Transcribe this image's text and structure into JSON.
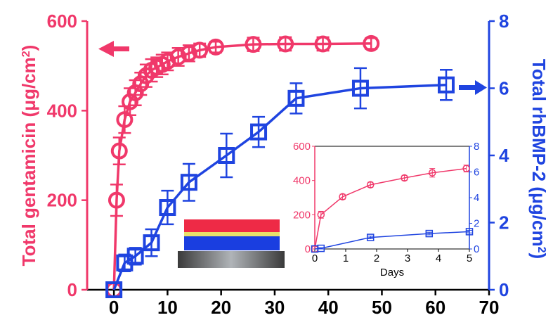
{
  "colors": {
    "gentamicin": "#f0386a",
    "rhbmp2": "#1f44e0",
    "axis": "#000000"
  },
  "chart_data": [
    {
      "type": "line",
      "xlim": [
        -5,
        70
      ],
      "x_ticks": [
        0,
        10,
        20,
        30,
        40,
        50,
        60,
        70
      ],
      "y_left": {
        "label_prefix": "Total gentamicin (",
        "label_unit": "μg/cm",
        "label_exp": "2",
        "label_suffix": ")",
        "lim": [
          0,
          600
        ],
        "ticks": [
          0,
          200,
          400,
          600
        ]
      },
      "y_right": {
        "label_prefix": "Total rhBMP-2 (",
        "label_unit": "μg/cm",
        "label_exp": "2",
        "label_suffix": ")",
        "lim": [
          0,
          8
        ],
        "ticks": [
          0,
          2,
          4,
          6,
          8
        ]
      },
      "series": [
        {
          "axis": "left",
          "marker": "circle",
          "color_key": "gentamicin",
          "x": [
            0,
            0.5,
            1,
            2,
            3,
            4,
            5,
            6,
            7,
            8,
            9,
            10,
            12,
            14,
            16,
            19,
            26,
            32,
            39,
            48
          ],
          "y": [
            0,
            200,
            310,
            380,
            420,
            440,
            460,
            478,
            490,
            497,
            503,
            510,
            520,
            528,
            535,
            542,
            548,
            549,
            549,
            550
          ],
          "err": [
            0,
            35,
            30,
            30,
            30,
            28,
            25,
            25,
            25,
            22,
            22,
            20,
            20,
            18,
            15,
            12,
            15,
            15,
            15,
            12
          ]
        },
        {
          "axis": "right",
          "marker": "square",
          "color_key": "rhbmp2",
          "x": [
            0,
            2,
            4,
            7,
            10,
            14,
            21,
            27,
            34,
            46,
            62
          ],
          "y": [
            0,
            0.8,
            1.0,
            1.4,
            2.45,
            3.2,
            4.0,
            4.7,
            5.7,
            6.0,
            6.1
          ],
          "err": [
            0,
            0.25,
            0.25,
            0.4,
            0.5,
            0.55,
            0.65,
            0.45,
            0.45,
            0.6,
            0.45
          ]
        }
      ]
    },
    {
      "type": "line",
      "xlabel": "Days",
      "xlim": [
        0,
        5
      ],
      "x_ticks": [
        0,
        1,
        2,
        3,
        4,
        5
      ],
      "y_left": {
        "lim": [
          0,
          600
        ],
        "ticks": [
          0,
          200,
          400,
          600
        ]
      },
      "y_right": {
        "lim": [
          0,
          8
        ],
        "ticks": [
          0,
          2,
          4,
          6,
          8
        ]
      },
      "series": [
        {
          "axis": "left",
          "marker": "circle",
          "color_key": "gentamicin",
          "x": [
            0,
            0.2,
            0.9,
            1.8,
            2.9,
            3.8,
            4.9
          ],
          "y": [
            0,
            200,
            305,
            375,
            415,
            445,
            470
          ],
          "err": [
            0,
            20,
            15,
            15,
            15,
            25,
            20
          ]
        },
        {
          "axis": "right",
          "marker": "square",
          "color_key": "rhbmp2",
          "x": [
            0,
            0.2,
            1.8,
            3.7,
            5
          ],
          "y": [
            0,
            0.05,
            0.9,
            1.2,
            1.35
          ],
          "err": [
            0,
            0.05,
            0.1,
            0.1,
            0.1
          ]
        }
      ]
    }
  ]
}
